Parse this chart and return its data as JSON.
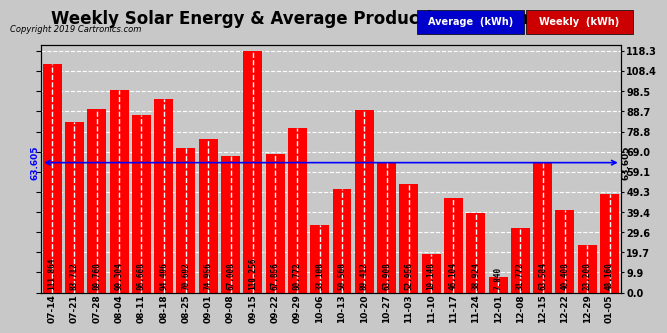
{
  "title": "Weekly Solar Energy & Average Production Tue Jan 8 16:21",
  "copyright": "Copyright 2019 Cartronics.com",
  "average_label": "Average  (kWh)",
  "weekly_label": "Weekly  (kWh)",
  "average_value": 63.605,
  "categories": [
    "07-14",
    "07-21",
    "07-28",
    "08-04",
    "08-11",
    "08-18",
    "08-25",
    "09-01",
    "09-08",
    "09-15",
    "09-22",
    "09-29",
    "10-06",
    "10-13",
    "10-20",
    "10-27",
    "11-03",
    "11-10",
    "11-17",
    "11-24",
    "12-01",
    "12-08",
    "12-15",
    "12-22",
    "12-29",
    "01-05"
  ],
  "values": [
    111.864,
    83.712,
    89.76,
    99.304,
    86.668,
    94.496,
    70.692,
    74.956,
    67.008,
    118.256,
    67.856,
    80.772,
    33.1,
    50.56,
    89.412,
    63.908,
    52.956,
    19.148,
    46.104,
    38.924,
    7.84,
    31.772,
    63.584,
    40.408,
    23.2,
    48.16
  ],
  "bar_color": "#FF0000",
  "avg_line_color": "#0000FF",
  "background_color": "#C8C8C8",
  "plot_bg_color": "#C8C8C8",
  "yticks_right": [
    0.0,
    9.9,
    19.7,
    29.6,
    39.4,
    49.3,
    59.1,
    69.0,
    78.8,
    88.7,
    98.5,
    108.4,
    118.3
  ],
  "ylim": [
    0,
    121
  ],
  "grid_color": "#FFFFFF",
  "title_fontsize": 12,
  "avg_legend_color": "#0000CC",
  "weekly_legend_color": "#CC0000"
}
